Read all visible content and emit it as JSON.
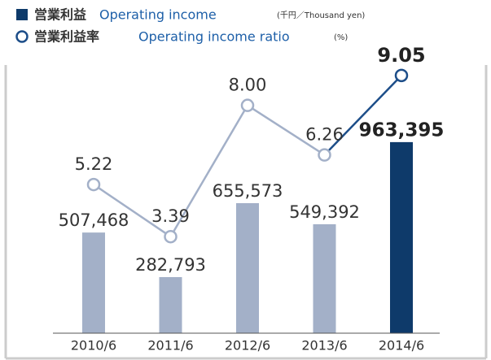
{
  "chart_data": {
    "type": "bar-line",
    "legend": [
      {
        "label": "営業利益",
        "name": "Operating income",
        "unit": "(千円／Thousand yen)"
      },
      {
        "label": "営業利益率",
        "name": "Operating income ratio",
        "unit": "(%)"
      }
    ],
    "categories": [
      "2010/6",
      "2011/6",
      "2012/6",
      "2013/6",
      "2014/6"
    ],
    "series": [
      {
        "name": "Operating income",
        "type": "bar",
        "color": "#a3b0c8",
        "colors": [
          "#a3b0c8",
          "#a3b0c8",
          "#a3b0c8",
          "#a3b0c8",
          "#0e3a6a"
        ],
        "values": [
          507468,
          282793,
          655573,
          549392,
          963395
        ],
        "value_labels": [
          "507,468",
          "282,793",
          "655,573",
          "549,392",
          "963,395"
        ]
      },
      {
        "name": "Operating income ratio",
        "type": "line",
        "axis": "y2",
        "color": "#a3b0c8",
        "colors": [
          "#a3b0c8",
          "#a3b0c8",
          "#a3b0c8",
          "#a3b0c8",
          "#1d4e89"
        ],
        "values": [
          5.22,
          3.39,
          8.0,
          6.26,
          9.05
        ],
        "value_labels": [
          "5.22",
          "3.39",
          "8.00",
          "6.26",
          "9.05"
        ]
      }
    ],
    "ylim": [
      0,
      1680000
    ],
    "y2lim": [
      0,
      11.7
    ]
  }
}
